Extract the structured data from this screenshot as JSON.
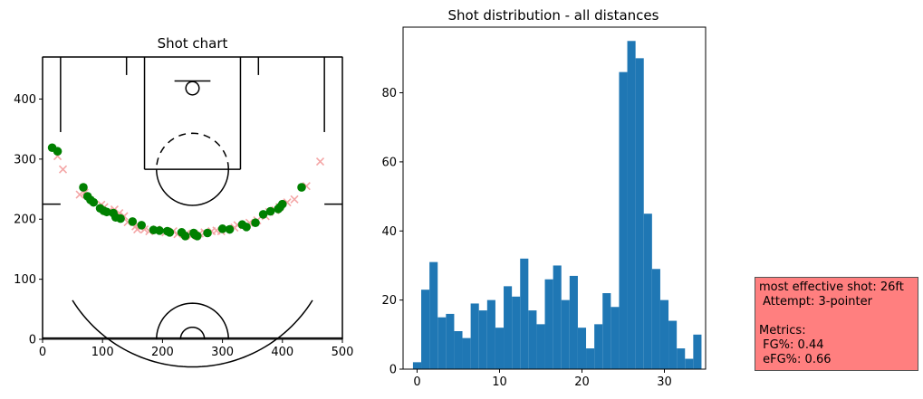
{
  "chart_data": [
    {
      "type": "scatter",
      "title": "Shot chart",
      "xlim": [
        0,
        500
      ],
      "ylim": [
        0,
        470
      ],
      "xticks": [
        0,
        100,
        200,
        300,
        400,
        500
      ],
      "yticks": [
        0,
        100,
        200,
        300,
        400
      ],
      "grid": false,
      "made_marker": "circle",
      "missed_marker": "x",
      "colors": {
        "made": "#008000",
        "missed": "#f4a6a6",
        "court_lines": "#000000"
      },
      "made_shots": [
        [
          16,
          319
        ],
        [
          25,
          313
        ],
        [
          68,
          253
        ],
        [
          75,
          238
        ],
        [
          80,
          232
        ],
        [
          85,
          228
        ],
        [
          96,
          218
        ],
        [
          102,
          214
        ],
        [
          107,
          212
        ],
        [
          118,
          210
        ],
        [
          122,
          203
        ],
        [
          130,
          201
        ],
        [
          150,
          196
        ],
        [
          165,
          190
        ],
        [
          185,
          182
        ],
        [
          195,
          181
        ],
        [
          208,
          180
        ],
        [
          212,
          178
        ],
        [
          232,
          178
        ],
        [
          238,
          172
        ],
        [
          252,
          177
        ],
        [
          254,
          174
        ],
        [
          258,
          172
        ],
        [
          275,
          177
        ],
        [
          300,
          184
        ],
        [
          312,
          183
        ],
        [
          333,
          191
        ],
        [
          340,
          187
        ],
        [
          355,
          194
        ],
        [
          368,
          208
        ],
        [
          380,
          213
        ],
        [
          393,
          217
        ],
        [
          396,
          220
        ],
        [
          400,
          225
        ],
        [
          432,
          253
        ]
      ],
      "missed_shots": [
        [
          25,
          305
        ],
        [
          34,
          283
        ],
        [
          62,
          241
        ],
        [
          70,
          244
        ],
        [
          98,
          224
        ],
        [
          103,
          220
        ],
        [
          110,
          213
        ],
        [
          120,
          216
        ],
        [
          128,
          210
        ],
        [
          136,
          205
        ],
        [
          142,
          195
        ],
        [
          155,
          188
        ],
        [
          158,
          183
        ],
        [
          162,
          187
        ],
        [
          170,
          183
        ],
        [
          178,
          180
        ],
        [
          190,
          183
        ],
        [
          205,
          178
        ],
        [
          218,
          180
        ],
        [
          225,
          175
        ],
        [
          240,
          176
        ],
        [
          248,
          172
        ],
        [
          262,
          176
        ],
        [
          270,
          178
        ],
        [
          282,
          180
        ],
        [
          290,
          181
        ],
        [
          298,
          180
        ],
        [
          320,
          186
        ],
        [
          325,
          190
        ],
        [
          345,
          194
        ],
        [
          358,
          198
        ],
        [
          372,
          205
        ],
        [
          378,
          212
        ],
        [
          388,
          215
        ],
        [
          395,
          220
        ],
        [
          408,
          228
        ],
        [
          420,
          233
        ],
        [
          440,
          255
        ],
        [
          463,
          296
        ]
      ]
    },
    {
      "type": "bar",
      "title": "Shot distribution - all distances",
      "xlim": [
        -1.7,
        35.0
      ],
      "ylim": [
        0,
        99
      ],
      "xticks": [
        0,
        10,
        20,
        30
      ],
      "yticks": [
        0,
        20,
        40,
        60,
        80
      ],
      "grid": false,
      "color": "#1f77b4",
      "bin_start": -0.5,
      "bin_width": 1,
      "values": [
        2,
        23,
        31,
        15,
        16,
        11,
        9,
        19,
        17,
        20,
        12,
        24,
        21,
        32,
        17,
        13,
        26,
        30,
        20,
        27,
        12,
        6,
        13,
        22,
        18,
        86,
        95,
        90,
        45,
        29,
        20,
        14,
        6,
        3,
        10
      ]
    }
  ],
  "annotation": {
    "text": "most effective shot: 26ft\n Attempt: 3-pointer\n\nMetrics:\n FG%: 0.44\n eFG%: 0.66",
    "background": "#ff7f7f",
    "border": "#555555"
  }
}
